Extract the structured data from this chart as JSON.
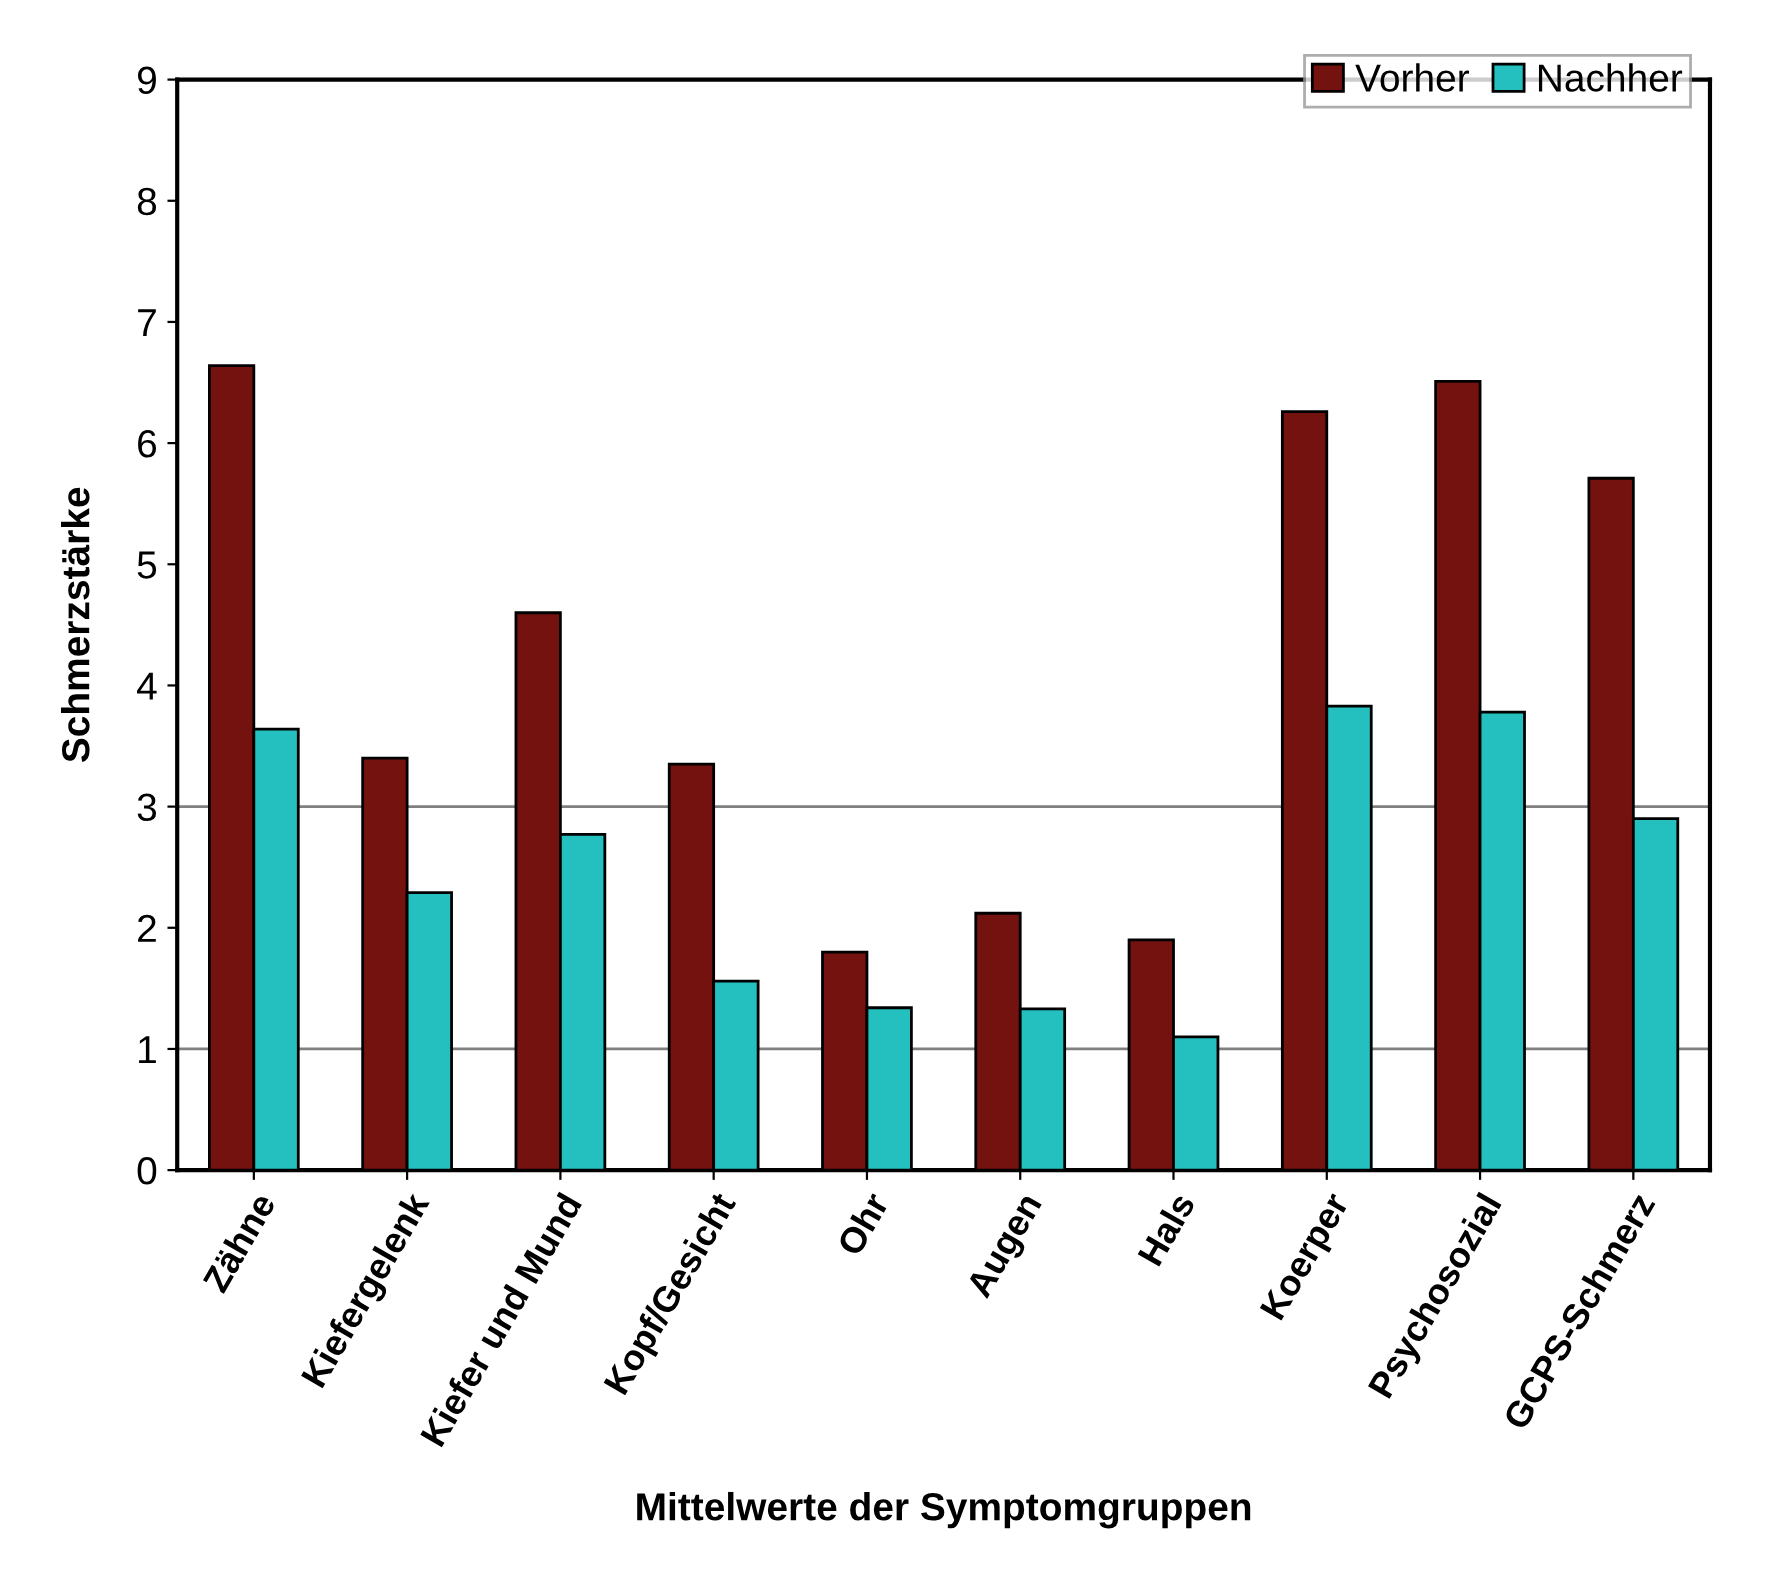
{
  "chart_data": {
    "type": "bar",
    "xlabel": "Mittelwerte der Symptomgruppen",
    "ylabel": "Schmerzstärke",
    "categories": [
      "Zähne",
      "Kiefergelenk",
      "Kiefer und Mund",
      "Kopf/Gesicht",
      "Ohr",
      "Augen",
      "Hals",
      "Koerper",
      "Psychosozial",
      "GCPS-Schmerz"
    ],
    "series": [
      {
        "name": "Vorher",
        "color": "#73120f",
        "values": [
          6.64,
          3.4,
          4.6,
          3.35,
          1.8,
          2.12,
          1.9,
          6.26,
          6.51,
          5.71
        ]
      },
      {
        "name": "Nachher",
        "color": "#24bfbf",
        "values": [
          3.64,
          2.29,
          2.77,
          1.56,
          1.34,
          1.33,
          1.1,
          3.83,
          3.78,
          2.9
        ]
      }
    ],
    "ylim": [
      0,
      9
    ],
    "yticks": [
      0,
      1,
      2,
      3,
      4,
      5,
      6,
      7,
      8,
      9
    ],
    "ref_lines": [
      {
        "axis": "y",
        "value": 1,
        "color": "#808080"
      },
      {
        "axis": "y",
        "value": 3,
        "color": "#808080"
      }
    ],
    "grid": false,
    "legend": "top right"
  }
}
